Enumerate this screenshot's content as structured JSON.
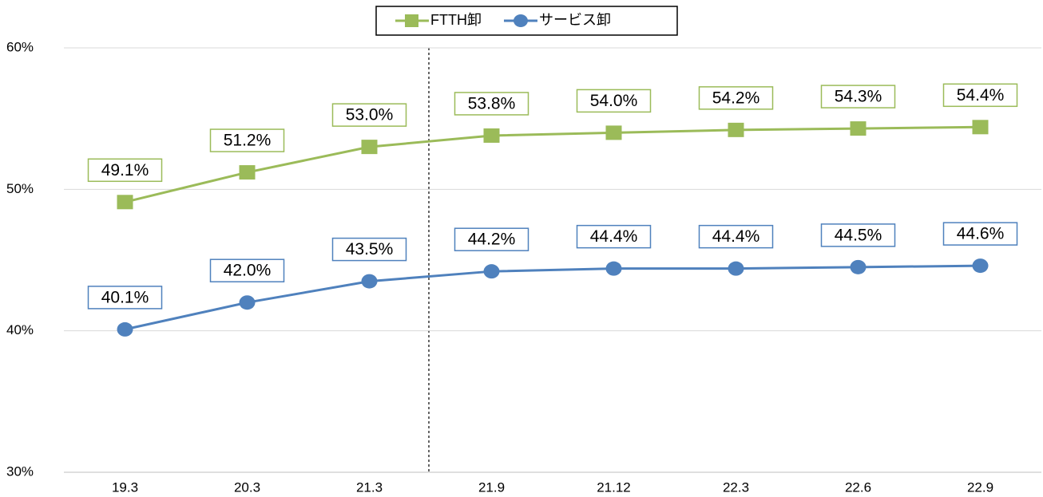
{
  "chart_data": {
    "type": "line",
    "categories": [
      "19.3",
      "20.3",
      "21.3",
      "21.9",
      "21.12",
      "22.3",
      "22.6",
      "22.9"
    ],
    "series": [
      {
        "name": "FTTH卸",
        "color": "#9bbb59",
        "marker": "square",
        "values": [
          49.1,
          51.2,
          53.0,
          53.8,
          54.0,
          54.2,
          54.3,
          54.4
        ],
        "value_labels": [
          "49.1%",
          "51.2%",
          "53.0%",
          "53.8%",
          "54.0%",
          "54.2%",
          "54.3%",
          "54.4%"
        ]
      },
      {
        "name": "サービス卸",
        "color": "#4f81bd",
        "marker": "circle",
        "values": [
          40.1,
          42.0,
          43.5,
          44.2,
          44.4,
          44.4,
          44.5,
          44.6
        ],
        "value_labels": [
          "40.1%",
          "42.0%",
          "43.5%",
          "44.2%",
          "44.4%",
          "44.4%",
          "44.5%",
          "44.6%"
        ]
      }
    ],
    "ylim": [
      30,
      60
    ],
    "yticks": [
      {
        "value": 30,
        "label": "30%"
      },
      {
        "value": 40,
        "label": "40%"
      },
      {
        "value": 50,
        "label": "50%"
      },
      {
        "value": 60,
        "label": "60%"
      }
    ],
    "grid": true,
    "legend": "top"
  }
}
